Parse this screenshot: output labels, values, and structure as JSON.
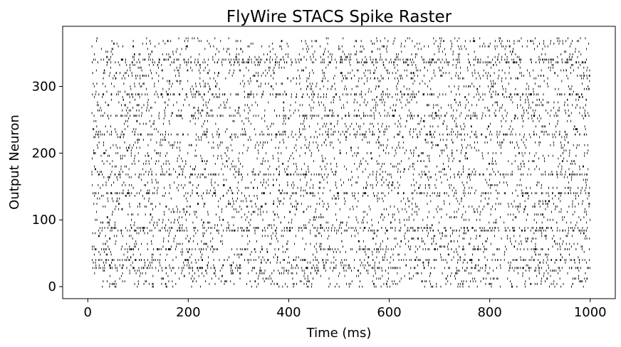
{
  "chart_data": {
    "type": "scatter",
    "subtype": "spike-raster",
    "title": "FlyWire STACS Spike Raster",
    "xlabel": "Time (ms)",
    "ylabel": "Output Neuron",
    "xlim": [
      -50,
      1050
    ],
    "ylim": [
      -18,
      390
    ],
    "xticks": [
      0,
      200,
      400,
      600,
      800,
      1000
    ],
    "yticks": [
      0,
      100,
      200,
      300
    ],
    "grid": false,
    "legend": "none",
    "marker": "|",
    "marker_color": "#000000",
    "neuron_range": [
      0,
      372
    ],
    "time_range": [
      8,
      1000
    ],
    "neuron_step": 4,
    "high_activity_neurons": [
      28,
      40,
      56,
      84,
      88,
      140,
      168,
      228,
      256,
      288,
      336,
      340
    ],
    "mean_spikes_per_neuron": 55
  }
}
